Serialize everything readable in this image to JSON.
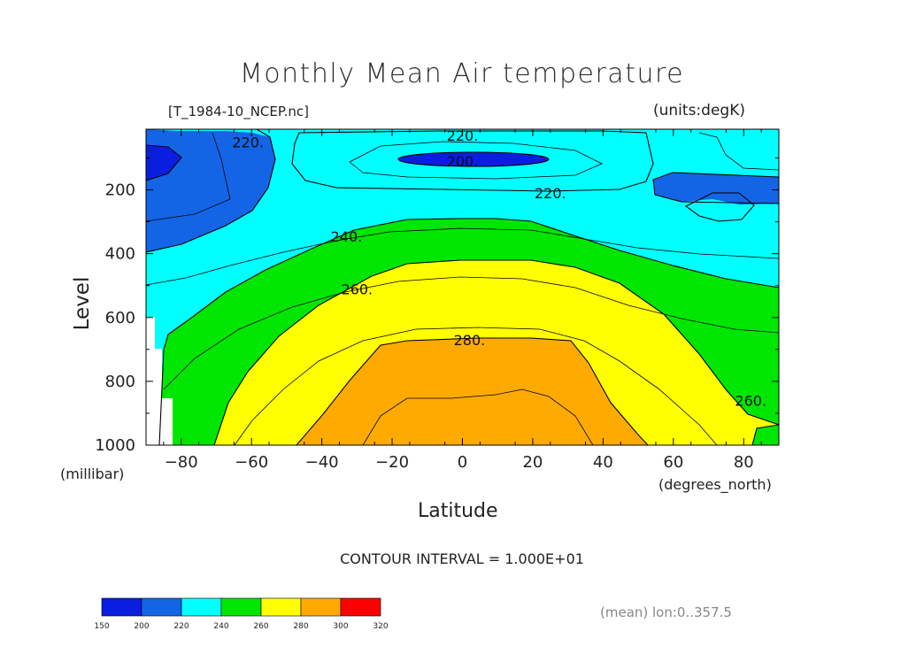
{
  "chart_data": {
    "type": "contour",
    "title": "Monthly Mean Air temperature",
    "file_label": "[T_1984-10_NCEP.nc]",
    "units_label": "(units:degK)",
    "xlabel": "Latitude",
    "xunit": "(degrees_north)",
    "ylabel": "Level",
    "yunit": "(millibar)",
    "x_ticks": [
      -80,
      -60,
      -40,
      -20,
      0,
      20,
      40,
      60,
      80
    ],
    "x_tick_labels": [
      "−80",
      "−60",
      "−40",
      "−20",
      "0",
      "20",
      "40",
      "60",
      "80"
    ],
    "y_ticks": [
      200,
      400,
      600,
      800,
      1000
    ],
    "xlim": [
      -90,
      90
    ],
    "ylim": [
      1000,
      10
    ],
    "contour_interval_text": "CONTOUR INTERVAL = 1.000E+01",
    "contour_labels": [
      {
        "text": "220.",
        "lat": -61,
        "level": 50
      },
      {
        "text": "220.",
        "lat": 0,
        "level": 30
      },
      {
        "text": "200.",
        "lat": 0,
        "level": 110
      },
      {
        "text": "220.",
        "lat": 25,
        "level": 210
      },
      {
        "text": "240.",
        "lat": -33,
        "level": 345
      },
      {
        "text": "260.",
        "lat": -30,
        "level": 510
      },
      {
        "text": "280.",
        "lat": 2,
        "level": 670
      },
      {
        "text": "260.",
        "lat": 82,
        "level": 860
      }
    ],
    "regions": [
      {
        "range": "200-220",
        "color": "#1464e6"
      },
      {
        "range": "<200",
        "color": "#0a1ee0"
      },
      {
        "range": "220-240",
        "color": "#00ffff"
      },
      {
        "range": "240-260",
        "color": "#00e600"
      },
      {
        "range": "260-280",
        "color": "#ffff00"
      },
      {
        "range": "280-300",
        "color": "#ffaa00"
      }
    ],
    "colorbar": {
      "boundaries": [
        150,
        200,
        220,
        240,
        260,
        280,
        300,
        320
      ],
      "colors": [
        "#0a1ee0",
        "#1464e6",
        "#00ffff",
        "#00e600",
        "#ffff00",
        "#ffaa00",
        "#ff0000"
      ]
    },
    "footer_note": "(mean) lon:0..357.5"
  }
}
